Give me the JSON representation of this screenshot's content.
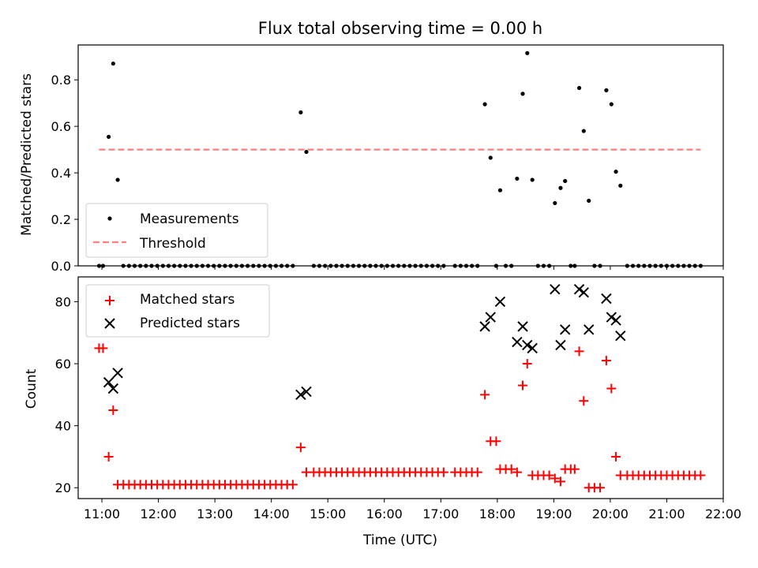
{
  "chart_data": [
    {
      "type": "scatter",
      "title": "Flux total observing time = 0.00 h",
      "ylabel": "Matched/Predicted stars",
      "xlabel": "",
      "xlim": [
        10.58,
        22.0
      ],
      "ylim": [
        0.0,
        0.95
      ],
      "yticks": [
        0.0,
        0.2,
        0.4,
        0.6,
        0.8
      ],
      "ytick_labels": [
        "0.0",
        "0.2",
        "0.4",
        "0.6",
        "0.8"
      ],
      "grid": false,
      "legend_placement": "lower-left",
      "series": [
        {
          "name": "Measurements",
          "marker": "dot",
          "color": "#000000",
          "x": [
            10.95,
            11.02,
            11.12,
            11.2,
            11.28,
            11.38,
            11.48,
            11.58,
            11.68,
            11.78,
            11.88,
            11.98,
            12.08,
            12.18,
            12.28,
            12.38,
            12.48,
            12.58,
            12.68,
            12.78,
            12.88,
            12.98,
            13.08,
            13.18,
            13.28,
            13.38,
            13.48,
            13.58,
            13.68,
            13.78,
            13.88,
            13.98,
            14.08,
            14.18,
            14.28,
            14.38,
            14.52,
            14.62,
            14.75,
            14.85,
            14.95,
            15.05,
            15.15,
            15.25,
            15.35,
            15.45,
            15.55,
            15.65,
            15.75,
            15.85,
            15.95,
            16.05,
            16.15,
            16.25,
            16.35,
            16.45,
            16.55,
            16.65,
            16.75,
            16.85,
            16.95,
            17.05,
            17.25,
            17.35,
            17.45,
            17.55,
            17.65,
            17.78,
            17.88,
            17.98,
            18.05,
            18.15,
            18.25,
            18.35,
            18.45,
            18.53,
            18.62,
            18.72,
            18.82,
            18.92,
            19.02,
            19.12,
            19.2,
            19.3,
            19.37,
            19.45,
            19.53,
            19.62,
            19.72,
            19.82,
            19.93,
            20.02,
            20.1,
            20.18,
            20.3,
            20.4,
            20.5,
            20.6,
            20.7,
            20.8,
            20.9,
            21.0,
            21.1,
            21.2,
            21.3,
            21.4,
            21.5,
            21.6
          ],
          "y": [
            0.0,
            0.0,
            0.555,
            0.87,
            0.37,
            0.0,
            0.0,
            0.0,
            0.0,
            0.0,
            0.0,
            0.0,
            0.0,
            0.0,
            0.0,
            0.0,
            0.0,
            0.0,
            0.0,
            0.0,
            0.0,
            0.0,
            0.0,
            0.0,
            0.0,
            0.0,
            0.0,
            0.0,
            0.0,
            0.0,
            0.0,
            0.0,
            0.0,
            0.0,
            0.0,
            0.0,
            0.66,
            0.49,
            0.0,
            0.0,
            0.0,
            0.0,
            0.0,
            0.0,
            0.0,
            0.0,
            0.0,
            0.0,
            0.0,
            0.0,
            0.0,
            0.0,
            0.0,
            0.0,
            0.0,
            0.0,
            0.0,
            0.0,
            0.0,
            0.0,
            0.0,
            0.0,
            0.0,
            0.0,
            0.0,
            0.0,
            0.0,
            0.695,
            0.465,
            0.0,
            0.325,
            0.0,
            0.0,
            0.375,
            0.74,
            0.915,
            0.37,
            0.0,
            0.0,
            0.0,
            0.27,
            0.335,
            0.365,
            0.0,
            0.0,
            0.765,
            0.58,
            0.28,
            0.0,
            0.0,
            0.755,
            0.695,
            0.405,
            0.345,
            0.0,
            0.0,
            0.0,
            0.0,
            0.0,
            0.0,
            0.0,
            0.0,
            0.0,
            0.0,
            0.0,
            0.0,
            0.0,
            0.0
          ]
        },
        {
          "name": "Threshold",
          "marker": "dashed-line",
          "color": "#ff7f7f",
          "x": [
            10.95,
            21.6
          ],
          "y": [
            0.5,
            0.5
          ]
        }
      ]
    },
    {
      "type": "scatter",
      "title": "",
      "ylabel": "Count",
      "xlabel": "Time (UTC)",
      "xlim": [
        10.58,
        22.0
      ],
      "ylim": [
        16.5,
        88.0
      ],
      "yticks": [
        20,
        40,
        60,
        80
      ],
      "ytick_labels": [
        "20",
        "40",
        "60",
        "80"
      ],
      "xticks": [
        11,
        12,
        13,
        14,
        15,
        16,
        17,
        18,
        19,
        20,
        21,
        22
      ],
      "xtick_labels": [
        "11:00",
        "12:00",
        "13:00",
        "14:00",
        "15:00",
        "16:00",
        "17:00",
        "18:00",
        "19:00",
        "20:00",
        "21:00",
        "22:00"
      ],
      "grid": false,
      "legend_placement": "top-left",
      "series": [
        {
          "name": "Matched stars",
          "marker": "plus",
          "color": "#ff0000",
          "x": [
            10.95,
            11.02,
            11.12,
            11.2,
            11.28,
            11.38,
            11.48,
            11.58,
            11.68,
            11.78,
            11.88,
            11.98,
            12.08,
            12.18,
            12.28,
            12.38,
            12.48,
            12.58,
            12.68,
            12.78,
            12.88,
            12.98,
            13.08,
            13.18,
            13.28,
            13.38,
            13.48,
            13.58,
            13.68,
            13.78,
            13.88,
            13.98,
            14.08,
            14.18,
            14.28,
            14.38,
            14.52,
            14.62,
            14.75,
            14.85,
            14.95,
            15.05,
            15.15,
            15.25,
            15.35,
            15.45,
            15.55,
            15.65,
            15.75,
            15.85,
            15.95,
            16.05,
            16.15,
            16.25,
            16.35,
            16.45,
            16.55,
            16.65,
            16.75,
            16.85,
            16.95,
            17.05,
            17.25,
            17.35,
            17.45,
            17.55,
            17.65,
            17.78,
            17.88,
            17.98,
            18.05,
            18.15,
            18.25,
            18.35,
            18.45,
            18.53,
            18.62,
            18.72,
            18.82,
            18.92,
            19.02,
            19.12,
            19.2,
            19.3,
            19.37,
            19.45,
            19.53,
            19.62,
            19.72,
            19.82,
            19.93,
            20.02,
            20.1,
            20.18,
            20.3,
            20.4,
            20.5,
            20.6,
            20.7,
            20.8,
            20.9,
            21.0,
            21.1,
            21.2,
            21.3,
            21.4,
            21.5,
            21.6
          ],
          "y": [
            65,
            65,
            30,
            45,
            21,
            21,
            21,
            21,
            21,
            21,
            21,
            21,
            21,
            21,
            21,
            21,
            21,
            21,
            21,
            21,
            21,
            21,
            21,
            21,
            21,
            21,
            21,
            21,
            21,
            21,
            21,
            21,
            21,
            21,
            21,
            21,
            33,
            25,
            25,
            25,
            25,
            25,
            25,
            25,
            25,
            25,
            25,
            25,
            25,
            25,
            25,
            25,
            25,
            25,
            25,
            25,
            25,
            25,
            25,
            25,
            25,
            25,
            25,
            25,
            25,
            25,
            25,
            50,
            35,
            35,
            26,
            26,
            26,
            25,
            53,
            60,
            24,
            24,
            24,
            24,
            23,
            22,
            26,
            26,
            26,
            64,
            48,
            20,
            20,
            20,
            61,
            52,
            30,
            24,
            24,
            24,
            24,
            24,
            24,
            24,
            24,
            24,
            24,
            24,
            24,
            24,
            24,
            24
          ]
        },
        {
          "name": "Predicted stars",
          "marker": "x",
          "color": "#000000",
          "x": [
            11.12,
            11.2,
            11.28,
            14.52,
            14.62,
            17.78,
            17.88,
            18.05,
            18.35,
            18.45,
            18.53,
            18.62,
            19.02,
            19.12,
            19.2,
            19.45,
            19.53,
            19.62,
            19.93,
            20.02,
            20.1,
            20.18
          ],
          "y": [
            54,
            52,
            57,
            50,
            51,
            72,
            75,
            80,
            67,
            72,
            66,
            65,
            84,
            66,
            71,
            84,
            83,
            71,
            81,
            75,
            74,
            69
          ]
        }
      ]
    }
  ]
}
